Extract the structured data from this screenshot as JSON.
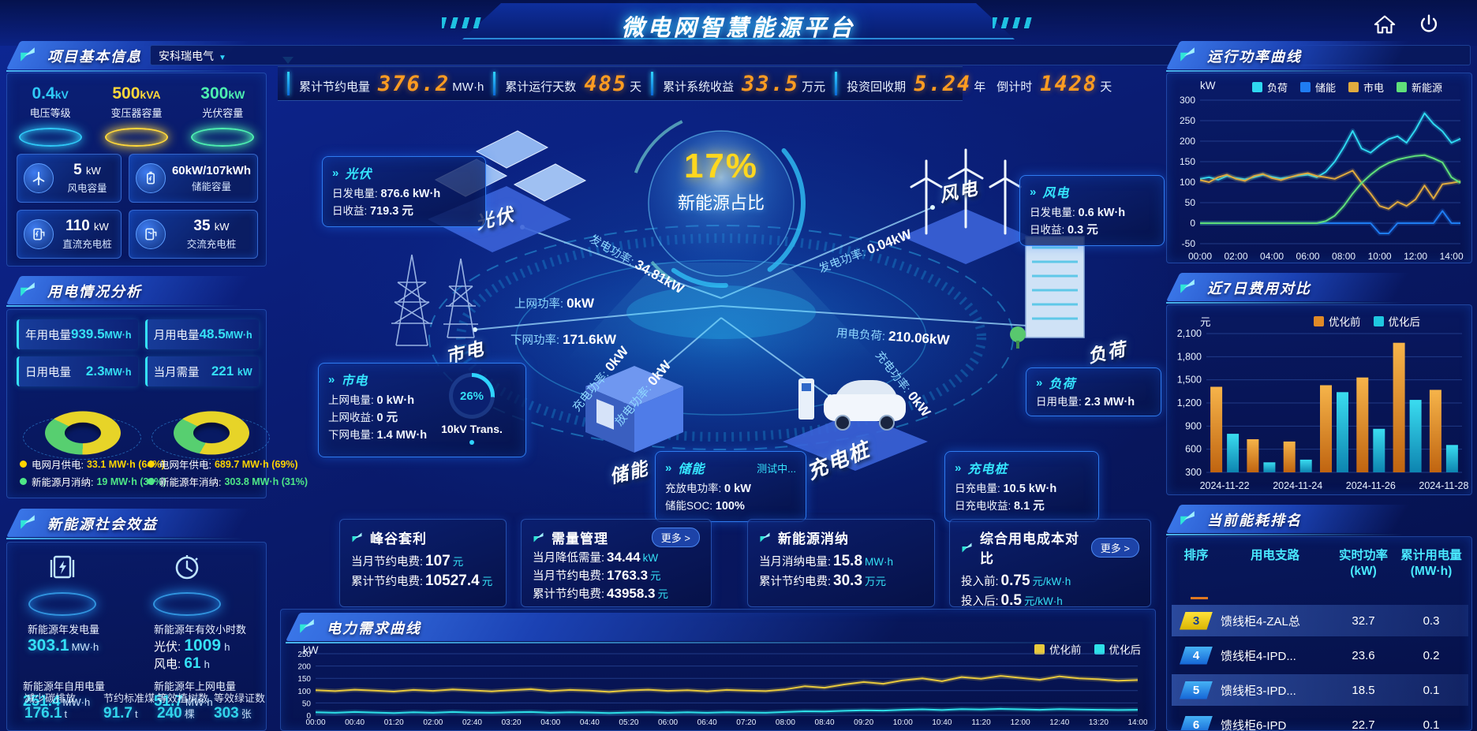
{
  "header": {
    "title": "微电网智慧能源平台"
  },
  "top_stats": [
    {
      "label": "累计节约电量",
      "value": "376.2",
      "unit": "MW·h"
    },
    {
      "label": "累计运行天数",
      "value": "485",
      "unit": "天"
    },
    {
      "label": "累计系统收益",
      "value": "33.5",
      "unit": "万元"
    },
    {
      "label": "投资回收期",
      "value": "5.24",
      "unit": "年"
    },
    {
      "label": "倒计时",
      "value": "1428",
      "unit": "天"
    }
  ],
  "project": {
    "title": "项目基本信息",
    "company": "安科瑞电气",
    "pedestals": [
      {
        "value": "0.4",
        "unit": "kV",
        "label": "电压等级",
        "color": "#2fc9f7"
      },
      {
        "value": "500",
        "unit": "kVA",
        "label": "变压器容量",
        "color": "#ffd83a"
      },
      {
        "value": "300",
        "unit": "kW",
        "label": "光伏容量",
        "color": "#4df0b0"
      }
    ],
    "cards": [
      {
        "value": "5",
        "unit": "kW",
        "label": "风电容量",
        "icon": "wind-turbine-icon"
      },
      {
        "value": "60kW/107kWh",
        "unit": "",
        "label": "储能容量",
        "icon": "battery-icon"
      },
      {
        "value": "110",
        "unit": "kW",
        "label": "直流充电桩",
        "icon": "dc-charger-icon"
      },
      {
        "value": "35",
        "unit": "kW",
        "label": "交流充电桩",
        "icon": "ac-charger-icon"
      }
    ]
  },
  "usage": {
    "title": "用电情况分析",
    "stats": [
      {
        "label": "年用电量",
        "value": "939.5",
        "unit": "MW·h"
      },
      {
        "label": "月用电量",
        "value": "48.5",
        "unit": "MW·h"
      },
      {
        "label": "日用电量",
        "value": "2.3",
        "unit": "MW·h"
      },
      {
        "label": "当月需量",
        "value": "221",
        "unit": "kW"
      }
    ],
    "legend": [
      {
        "label": "电网月供电:",
        "value": "33.1 MW·h (64%)",
        "color": "#ffd400"
      },
      {
        "label": "新能源月消纳:",
        "value": "19 MW·h (36%)",
        "color": "#4ee787"
      },
      {
        "label": "电网年供电:",
        "value": "689.7 MW·h (69%)",
        "color": "#ffd400"
      },
      {
        "label": "新能源年消纳:",
        "value": "303.8 MW·h (31%)",
        "color": "#4ee787"
      }
    ]
  },
  "benefit": {
    "title": "新能源社会效益",
    "gen": {
      "label": "新能源年发电量",
      "value": "303.1",
      "unit": "MW·h"
    },
    "hours": {
      "label": "新能源年有效小时数",
      "pv_k": "光伏:",
      "pv_v": "1009",
      "pv_u": "h",
      "wind_k": "风电:",
      "wind_v": "61",
      "wind_u": "h"
    },
    "sub": [
      {
        "label": "新能源年自用电量",
        "value": "251.4",
        "unit": "MW·h"
      },
      {
        "label": "新能源年上网电量",
        "value": "51.7",
        "unit": "MW·h"
      },
      {
        "label": "减少碳排放",
        "value": "176.1",
        "unit": "t"
      },
      {
        "label": "节约标准煤",
        "value": "91.7",
        "unit": "t"
      },
      {
        "label": "等效植树数",
        "value": "240",
        "unit": "棵"
      },
      {
        "label": "等效绿证数",
        "value": "303",
        "unit": "张"
      }
    ]
  },
  "diagram": {
    "center_pct": "17%",
    "center_label": "新能源占比",
    "nodes": {
      "pv": "光伏",
      "wind": "风电",
      "grid": "市电",
      "load": "负荷",
      "storage": "储能",
      "charger": "充电桩"
    },
    "flows": {
      "pv_gen": {
        "label": "发电功率:",
        "value": "34.81kW"
      },
      "to_grid": {
        "label": "上网功率:",
        "value": "0kW"
      },
      "from_grid": {
        "label": "下网功率:",
        "value": "171.6kW"
      },
      "wind_gen": {
        "label": "发电功率:",
        "value": "0.04kW"
      },
      "load_power": {
        "label": "用电负荷:",
        "value": "210.06kW"
      },
      "charge_l": {
        "label": "充电功率:",
        "value": "0kW"
      },
      "discharge_l": {
        "label": "放电功率:",
        "value": "0kW"
      },
      "charge_r": {
        "label": "充电功率:",
        "value": "0kW"
      }
    },
    "boxes": {
      "pv": {
        "title": "光伏",
        "r1k": "日发电量:",
        "r1v": "876.6 kW·h",
        "r2k": "日收益:",
        "r2v": "719.3 元"
      },
      "wind": {
        "title": "风电",
        "r1k": "日发电量:",
        "r1v": "0.6 kW·h",
        "r2k": "日收益:",
        "r2v": "0.3 元"
      },
      "grid": {
        "title": "市电",
        "r1k": "上网电量:",
        "r1v": "0 kW·h",
        "r2k": "上网收益:",
        "r2v": "0 元",
        "r3k": "下网电量:",
        "r3v": "1.4 MW·h",
        "gauge_pct": "26%",
        "gauge_label": "10kV Trans."
      },
      "load": {
        "title": "负荷",
        "r1k": "日用电量:",
        "r1v": "2.3 MW·h"
      },
      "storage": {
        "title": "储能",
        "tag": "测试中...",
        "r1k": "充放电功率:",
        "r1v": "0 kW",
        "r2k": "储能SOC:",
        "r2v": "100%"
      },
      "charger": {
        "title": "充电桩",
        "r1k": "日充电量:",
        "r1v": "10.5 kW·h",
        "r2k": "日充电收益:",
        "r2v": "8.1 元"
      }
    }
  },
  "boxes": [
    {
      "title": "峰谷套利",
      "rows": [
        {
          "k": "当月节约电费:",
          "v": "107",
          "u": "元"
        },
        {
          "k": "累计节约电费:",
          "v": "10527.4",
          "u": "元"
        }
      ]
    },
    {
      "title": "需量管理",
      "more": "更多 >",
      "rows": [
        {
          "k": "当月降低需量:",
          "v": "34.44",
          "u": "kW"
        },
        {
          "k": "当月节约电费:",
          "v": "1763.3",
          "u": "元"
        },
        {
          "k": "累计节约电费:",
          "v": "43958.3",
          "u": "元"
        }
      ]
    },
    {
      "title": "新能源消纳",
      "rows": [
        {
          "k": "当月消纳电量:",
          "v": "15.8",
          "u": "MW·h"
        },
        {
          "k": "累计节约电费:",
          "v": "30.3",
          "u": "万元"
        }
      ]
    },
    {
      "title": "综合用电成本对比",
      "more": "更多 >",
      "rows": [
        {
          "k": "投入前:",
          "v": "0.75",
          "u": "元/kW·h"
        },
        {
          "k": "投入后:",
          "v": "0.5",
          "u": "元/kW·h"
        }
      ]
    }
  ],
  "ranking": {
    "title": "当前能耗排名",
    "headers": [
      {
        "a": "排序",
        "b": ""
      },
      {
        "a": "用电支路",
        "b": ""
      },
      {
        "a": "实时功率",
        "b": "(kW)"
      },
      {
        "a": "累计用电量",
        "b": "(MW·h)"
      }
    ],
    "rows": [
      {
        "rank": "3",
        "name": "馈线柜4-ZAL总",
        "power": "32.7",
        "energy": "0.3"
      },
      {
        "rank": "4",
        "name": "馈线柜4-IPD...",
        "power": "23.6",
        "energy": "0.2"
      },
      {
        "rank": "5",
        "name": "馈线柜3-IPD...",
        "power": "18.5",
        "energy": "0.1"
      },
      {
        "rank": "6",
        "name": "馈线柜6-IPD",
        "power": "22.7",
        "energy": "0.1"
      }
    ]
  },
  "chart_data": [
    {
      "id": "power_curve",
      "type": "line",
      "title": "运行功率曲线",
      "unit": "kW",
      "ylim": [
        -50,
        300
      ],
      "yticks": [
        -50,
        0,
        50,
        100,
        150,
        200,
        250,
        300
      ],
      "grid": true,
      "legend_position": "top",
      "x_label_every": 4,
      "x": [
        "00:00",
        "00:30",
        "01:00",
        "01:30",
        "02:00",
        "02:30",
        "03:00",
        "03:30",
        "04:00",
        "04:30",
        "05:00",
        "05:30",
        "06:00",
        "06:30",
        "07:00",
        "07:30",
        "08:00",
        "08:30",
        "09:00",
        "09:30",
        "10:00",
        "10:30",
        "11:00",
        "11:30",
        "12:00",
        "12:30",
        "13:00",
        "13:30",
        "14:00",
        "14:30"
      ],
      "series": [
        {
          "name": "负荷",
          "color": "#2fd8f0",
          "values": [
            108,
            112,
            106,
            115,
            110,
            107,
            112,
            118,
            113,
            109,
            112,
            116,
            118,
            112,
            125,
            150,
            185,
            225,
            182,
            172,
            190,
            205,
            212,
            196,
            228,
            268,
            242,
            224,
            196,
            206
          ]
        },
        {
          "name": "储能",
          "color": "#1f7cf2",
          "values": [
            0,
            0,
            0,
            0,
            0,
            0,
            0,
            0,
            0,
            0,
            0,
            0,
            0,
            0,
            0,
            0,
            0,
            0,
            0,
            0,
            -25,
            -25,
            0,
            0,
            0,
            0,
            0,
            30,
            0,
            0
          ]
        },
        {
          "name": "市电",
          "color": "#e0aa3e",
          "values": [
            105,
            100,
            112,
            118,
            108,
            103,
            115,
            120,
            110,
            105,
            112,
            118,
            122,
            115,
            112,
            108,
            118,
            128,
            98,
            72,
            42,
            35,
            52,
            42,
            58,
            92,
            60,
            95,
            98,
            102
          ]
        },
        {
          "name": "新能源",
          "color": "#5fe07a",
          "values": [
            0,
            0,
            0,
            0,
            0,
            0,
            0,
            0,
            0,
            0,
            0,
            0,
            0,
            0,
            5,
            18,
            42,
            72,
            98,
            118,
            135,
            147,
            155,
            160,
            164,
            166,
            158,
            148,
            112,
            98
          ]
        }
      ]
    },
    {
      "id": "cost_compare",
      "type": "bar",
      "title": "近7日费用对比",
      "unit": "元",
      "ylim": [
        300,
        2100
      ],
      "yticks": [
        300,
        600,
        900,
        1200,
        1500,
        1800,
        2100
      ],
      "ytick_labels": [
        "300",
        "600",
        "900",
        "1,200",
        "1,500",
        "1,800",
        "2,100"
      ],
      "grid": true,
      "legend_position": "top",
      "x_label_every": 2,
      "categories": [
        "2024-11-22",
        "2024-11-23",
        "2024-11-24",
        "2024-11-25",
        "2024-11-26",
        "2024-11-27",
        "2024-11-28"
      ],
      "series": [
        {
          "name": "优化前",
          "color": "#e08a27",
          "values": [
            1410,
            730,
            700,
            1430,
            1530,
            1980,
            1370
          ]
        },
        {
          "name": "优化后",
          "color": "#1fc8e0",
          "values": [
            800,
            430,
            465,
            1340,
            865,
            1240,
            655
          ]
        }
      ]
    },
    {
      "id": "demand_curve",
      "type": "line",
      "title": "电力需求曲线",
      "unit": "kW",
      "ylim": [
        0,
        250
      ],
      "yticks": [
        0,
        50,
        100,
        150,
        200,
        250
      ],
      "grid": true,
      "legend_position": "top-right",
      "x_label_every": 2,
      "x": [
        "00:00",
        "00:20",
        "00:40",
        "01:00",
        "01:20",
        "01:40",
        "02:00",
        "02:20",
        "02:40",
        "03:00",
        "03:20",
        "03:40",
        "04:00",
        "04:20",
        "04:40",
        "05:00",
        "05:20",
        "05:40",
        "06:00",
        "06:20",
        "06:40",
        "07:00",
        "07:20",
        "07:40",
        "08:00",
        "08:20",
        "08:40",
        "09:00",
        "09:20",
        "09:40",
        "10:00",
        "10:20",
        "10:40",
        "11:00",
        "11:20",
        "11:40",
        "12:00",
        "12:20",
        "12:40",
        "13:00",
        "13:20",
        "13:40",
        "14:00"
      ],
      "series": [
        {
          "name": "优化前",
          "color": "#e8c93d",
          "values": [
            102,
            98,
            104,
            100,
            96,
            103,
            99,
            105,
            101,
            97,
            102,
            106,
            98,
            103,
            100,
            95,
            101,
            104,
            99,
            102,
            97,
            103,
            100,
            98,
            105,
            118,
            112,
            125,
            135,
            128,
            142,
            150,
            138,
            155,
            148,
            160,
            152,
            144,
            158,
            150,
            146,
            140,
            143
          ]
        },
        {
          "name": "优化后",
          "color": "#2ee0e8",
          "values": [
            12,
            10,
            13,
            11,
            9,
            12,
            10,
            13,
            11,
            10,
            12,
            13,
            10,
            12,
            11,
            9,
            11,
            12,
            10,
            12,
            10,
            12,
            11,
            10,
            13,
            16,
            15,
            18,
            20,
            19,
            22,
            24,
            21,
            25,
            23,
            26,
            24,
            22,
            25,
            23,
            22,
            21,
            22
          ]
        }
      ]
    },
    {
      "id": "monthly_supply",
      "type": "pie",
      "unit": "MW·h",
      "slices": [
        {
          "label": "电网月供电",
          "value": 33.1,
          "pct": 64,
          "color": "#e7d428"
        },
        {
          "label": "新能源月消纳",
          "value": 19,
          "pct": 36,
          "color": "#57cf70"
        }
      ]
    },
    {
      "id": "yearly_supply",
      "type": "pie",
      "unit": "MW·h",
      "slices": [
        {
          "label": "电网年供电",
          "value": 689.7,
          "pct": 69,
          "color": "#e7d428"
        },
        {
          "label": "新能源年消纳",
          "value": 303.8,
          "pct": 31,
          "color": "#57cf70"
        }
      ]
    }
  ]
}
